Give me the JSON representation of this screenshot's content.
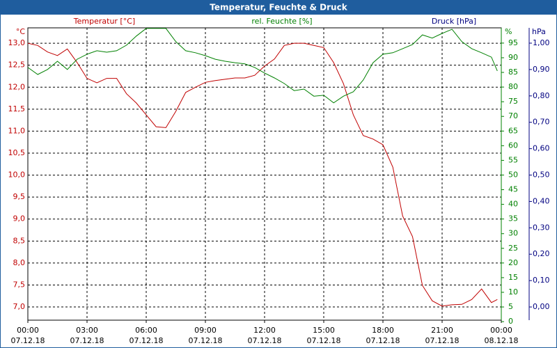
{
  "chart_data": {
    "type": "line",
    "title": "Temperatur, Feuchte & Druck",
    "y_label": "Temperatur [°C]",
    "y2_label": "rel. Feuchte [%]",
    "y3_label": "Druck [hPa]",
    "y_unit": "°C",
    "y2_unit": "%",
    "y3_unit": "hPa",
    "x": [
      0,
      0.5,
      1,
      1.5,
      2,
      2.5,
      3,
      3.5,
      4,
      4.5,
      5,
      5.5,
      6,
      6.5,
      7,
      7.5,
      8,
      8.5,
      9,
      9.5,
      10,
      10.5,
      11,
      11.5,
      12,
      12.5,
      13,
      13.5,
      14,
      14.5,
      15,
      15.5,
      16,
      16.5,
      17,
      17.5,
      18,
      18.5,
      19,
      19.5,
      20,
      20.5,
      21,
      21.5,
      22,
      22.5,
      23,
      23.5,
      23.8
    ],
    "xlim": [
      0,
      24
    ],
    "xticks": [
      {
        "value": 0,
        "label": "00:00"
      },
      {
        "value": 3,
        "label": "03:00"
      },
      {
        "value": 6,
        "label": "06:00"
      },
      {
        "value": 9,
        "label": "09:00"
      },
      {
        "value": 12,
        "label": "12:00"
      },
      {
        "value": 15,
        "label": "15:00"
      },
      {
        "value": 18,
        "label": "18:00"
      },
      {
        "value": 21,
        "label": "21:00"
      },
      {
        "value": 24,
        "label": "00:00"
      }
    ],
    "xtick_dates": [
      "07.12.18",
      "07.12.18",
      "07.12.18",
      "07.12.18",
      "07.12.18",
      "07.12.18",
      "07.12.18",
      "07.12.18",
      "08.12.18"
    ],
    "series": [
      {
        "name": "Temperatur [°C]",
        "color": "#c00000",
        "axis": "y",
        "values": [
          13.0,
          12.95,
          12.8,
          12.72,
          12.87,
          12.56,
          12.2,
          12.1,
          12.2,
          12.2,
          11.85,
          11.64,
          11.37,
          11.1,
          11.08,
          11.45,
          11.88,
          12.0,
          12.11,
          12.15,
          12.18,
          12.21,
          12.21,
          12.27,
          12.48,
          12.64,
          12.95,
          13.0,
          13.0,
          12.95,
          12.9,
          12.56,
          12.08,
          11.37,
          10.9,
          10.82,
          10.69,
          10.18,
          9.07,
          8.6,
          7.49,
          7.14,
          7.02,
          7.05,
          7.06,
          7.17,
          7.41,
          7.1,
          7.17
        ]
      },
      {
        "name": "rel. Feuchte [%]",
        "color": "#008000",
        "axis": "y2",
        "values": [
          86.7,
          84.3,
          86,
          88.8,
          86,
          89.5,
          91.2,
          92.4,
          91.9,
          92.4,
          94.3,
          97.4,
          100,
          100,
          100,
          95.5,
          92.4,
          91.7,
          90.7,
          89.5,
          88.8,
          88.3,
          87.9,
          86.7,
          84.8,
          83.1,
          81.2,
          78.8,
          79.3,
          76.9,
          77.2,
          74.6,
          76.9,
          78.4,
          82.4,
          88.3,
          91.2,
          91.7,
          93.1,
          94.5,
          97.8,
          96.7,
          98.3,
          99.7,
          95.5,
          93.1,
          91.7,
          90.2,
          85.5
        ]
      }
    ],
    "ylim": [
      6.7,
      13.35
    ],
    "yticks": [
      {
        "value": 7.0,
        "label": "7,0"
      },
      {
        "value": 7.5,
        "label": "7,5"
      },
      {
        "value": 8.0,
        "label": "8,0"
      },
      {
        "value": 8.5,
        "label": "8,5"
      },
      {
        "value": 9.0,
        "label": "9,0"
      },
      {
        "value": 9.5,
        "label": "9,5"
      },
      {
        "value": 10.0,
        "label": "10,0"
      },
      {
        "value": 10.5,
        "label": "10,5"
      },
      {
        "value": 11.0,
        "label": "11,0"
      },
      {
        "value": 11.5,
        "label": "11,5"
      },
      {
        "value": 12.0,
        "label": "12,0"
      },
      {
        "value": 12.5,
        "label": "12,5"
      },
      {
        "value": 13.0,
        "label": "13,0"
      }
    ],
    "y2lim": [
      0.5,
      100.2
    ],
    "y2ticks": [
      0,
      5,
      10,
      15,
      20,
      25,
      30,
      35,
      40,
      45,
      50,
      55,
      60,
      65,
      70,
      75,
      80,
      85,
      90,
      95
    ],
    "y3lim": [
      -0.05,
      1.058
    ],
    "y3ticks": [
      {
        "value": 0,
        "label": "0,00"
      },
      {
        "value": 0.1,
        "label": "0,10"
      },
      {
        "value": 0.2,
        "label": "0,20"
      },
      {
        "value": 0.3,
        "label": "0,30"
      },
      {
        "value": 0.4,
        "label": "0,40"
      },
      {
        "value": 0.5,
        "label": "0,50"
      },
      {
        "value": 0.6,
        "label": "0,60"
      },
      {
        "value": 0.7,
        "label": "0,70"
      },
      {
        "value": 0.8,
        "label": "0,80"
      },
      {
        "value": 0.9,
        "label": "0,90"
      },
      {
        "value": 1.0,
        "label": "1,00"
      }
    ],
    "y3color": "#000080",
    "grid": true
  }
}
